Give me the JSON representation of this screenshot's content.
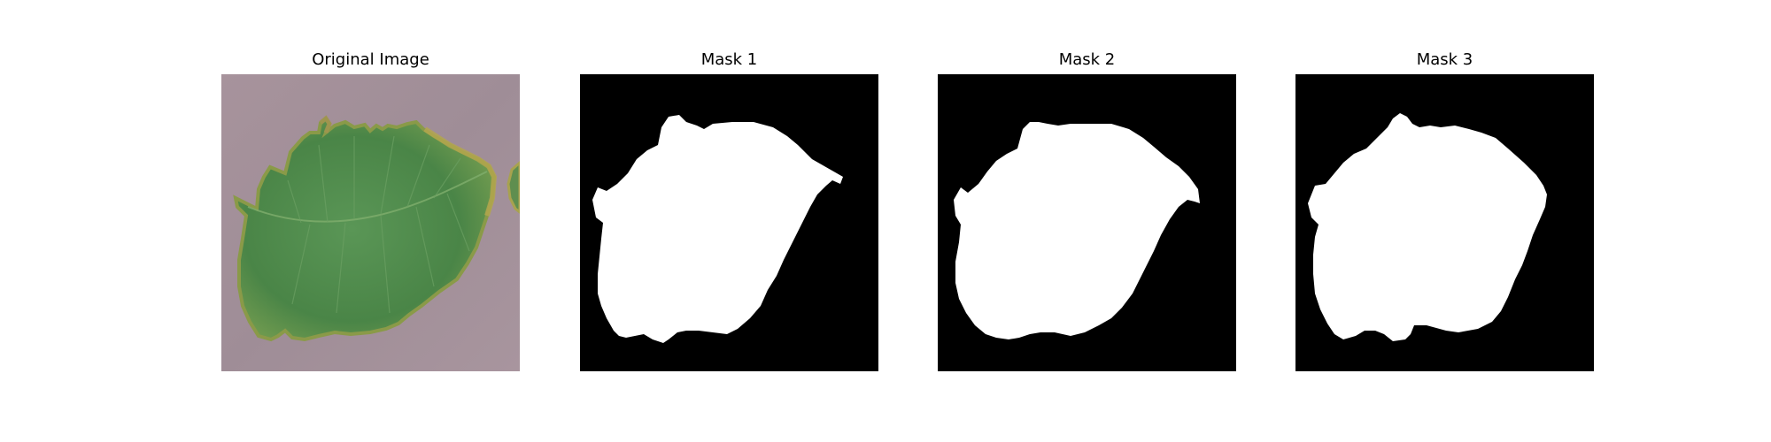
{
  "figure": {
    "panels": [
      {
        "title": "Original Image"
      },
      {
        "title": "Mask 1"
      },
      {
        "title": "Mask 2"
      },
      {
        "title": "Mask 3"
      }
    ]
  },
  "colors": {
    "background": "#ffffff",
    "photo_background": "#a08e98",
    "leaf_green": "#4f8a4c",
    "leaf_edge": "#9aa14e",
    "mask_background": "#000000",
    "mask_foreground": "#ffffff"
  }
}
